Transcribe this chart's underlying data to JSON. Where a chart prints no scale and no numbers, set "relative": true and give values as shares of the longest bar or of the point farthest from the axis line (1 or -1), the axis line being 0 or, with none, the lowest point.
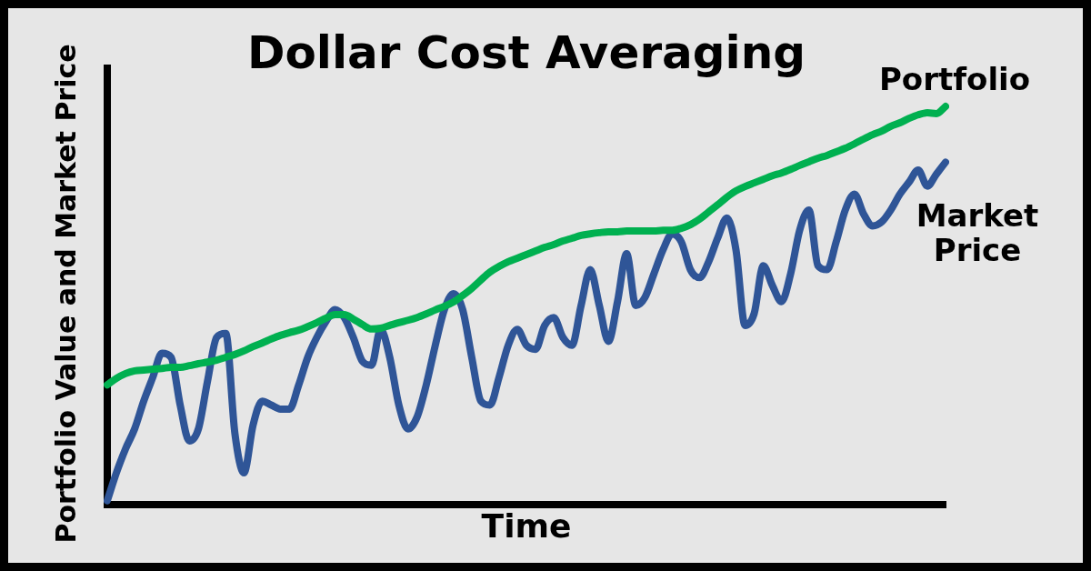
{
  "chart_data": {
    "type": "line",
    "title": "Dollar Cost Averaging",
    "xlabel": "Time",
    "ylabel": "Portfolio Value and Market Price",
    "relative": true,
    "categories": [
      null,
      null,
      null,
      null,
      null,
      null,
      null,
      null,
      null,
      null,
      null,
      null,
      null,
      null,
      null,
      null,
      null,
      null,
      null,
      null,
      null,
      null,
      null,
      null,
      null,
      null,
      null,
      null,
      null,
      null,
      null,
      null,
      null,
      null,
      null,
      null,
      null,
      null,
      null,
      null,
      null,
      null,
      null,
      null,
      null,
      null,
      null,
      null,
      null,
      null,
      null,
      null,
      null,
      null,
      null,
      null,
      null,
      null,
      null,
      null,
      null,
      null,
      null,
      null,
      null,
      null,
      null,
      null,
      null,
      null,
      null,
      null,
      null,
      null,
      null,
      null,
      null,
      null,
      null,
      null,
      null,
      null,
      null,
      null,
      null,
      null,
      null,
      null,
      null,
      null,
      null,
      null,
      null
    ],
    "series": [
      {
        "name": "Portfolio",
        "color": "#00b050",
        "values": [
          0.301,
          0.317,
          0.329,
          0.336,
          0.338,
          0.34,
          0.342,
          0.345,
          0.345,
          0.349,
          0.354,
          0.358,
          0.363,
          0.37,
          0.377,
          0.386,
          0.397,
          0.406,
          0.416,
          0.425,
          0.432,
          0.438,
          0.447,
          0.457,
          0.468,
          0.477,
          0.477,
          0.466,
          0.452,
          0.441,
          0.443,
          0.45,
          0.457,
          0.463,
          0.47,
          0.479,
          0.489,
          0.498,
          0.509,
          0.525,
          0.543,
          0.564,
          0.584,
          0.598,
          0.61,
          0.619,
          0.628,
          0.637,
          0.646,
          0.653,
          0.662,
          0.669,
          0.676,
          0.68,
          0.683,
          0.685,
          0.685,
          0.687,
          0.687,
          0.687,
          0.687,
          0.689,
          0.689,
          0.694,
          0.703,
          0.717,
          0.735,
          0.753,
          0.772,
          0.788,
          0.799,
          0.808,
          0.817,
          0.826,
          0.833,
          0.842,
          0.852,
          0.861,
          0.87,
          0.877,
          0.886,
          0.895,
          0.906,
          0.918,
          0.929,
          0.938,
          0.95,
          0.959,
          0.97,
          0.979,
          0.984,
          0.982,
          1.0
        ]
      },
      {
        "name": "Market Price",
        "color": "#2f5597",
        "values": [
          0.01,
          0.08,
          0.14,
          0.19,
          0.26,
          0.32,
          0.38,
          0.37,
          0.25,
          0.16,
          0.19,
          0.31,
          0.42,
          0.43,
          0.18,
          0.08,
          0.2,
          0.26,
          0.25,
          0.24,
          0.24,
          0.3,
          0.37,
          0.42,
          0.46,
          0.49,
          0.47,
          0.42,
          0.36,
          0.35,
          0.44,
          0.37,
          0.25,
          0.19,
          0.22,
          0.3,
          0.4,
          0.49,
          0.53,
          0.49,
          0.37,
          0.26,
          0.25,
          0.32,
          0.4,
          0.44,
          0.4,
          0.39,
          0.45,
          0.47,
          0.42,
          0.4,
          0.5,
          0.59,
          0.5,
          0.41,
          0.51,
          0.63,
          0.5,
          0.52,
          0.58,
          0.64,
          0.68,
          0.66,
          0.59,
          0.57,
          0.61,
          0.67,
          0.72,
          0.64,
          0.45,
          0.48,
          0.6,
          0.55,
          0.51,
          0.58,
          0.69,
          0.74,
          0.6,
          0.59,
          0.66,
          0.74,
          0.78,
          0.73,
          0.7,
          0.71,
          0.74,
          0.78,
          0.81,
          0.84,
          0.8,
          0.83,
          0.86
        ]
      }
    ]
  }
}
